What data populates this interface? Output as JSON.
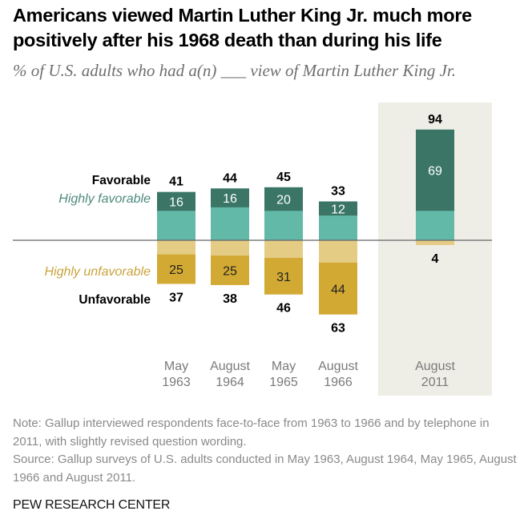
{
  "title": "Americans viewed Martin Luther King Jr. much more positively after his 1968 death than during his life",
  "subtitle": "% of U.S. adults who had a(n) ___ view of Martin Luther King Jr.",
  "notes": {
    "note": "Note: Gallup interviewed respondents face-to-face from 1963 to 1966 and by telephone in 2011, with slightly revised question wording.",
    "source": "Source: Gallup surveys of U.S. adults conducted in May 1963, August 1964, May 1965, August 1966 and August 2011."
  },
  "brand": "PEW RESEARCH CENTER",
  "colors": {
    "highly_favorable": "#3a7566",
    "favorable": "#63b9a8",
    "highly_unfavorable": "#d2a933",
    "unfavorable": "#e5cc85",
    "highlight_panel": "#efeee6",
    "baseline": "#666666",
    "category_label": "#7a7a7a",
    "highly_favorable_label": "#4d8a7c",
    "highly_unfavorable_label": "#c9a33c"
  },
  "chart_data": {
    "type": "bar",
    "subtype": "diverging-stacked",
    "title": "Americans viewed Martin Luther King Jr. much more positively after his 1968 death than during his life",
    "subtitle": "% of U.S. adults who had a(n) ___ view of Martin Luther King Jr.",
    "categories": [
      [
        "May",
        "1963"
      ],
      [
        "August",
        "1964"
      ],
      [
        "May",
        "1965"
      ],
      [
        "August",
        "1966"
      ],
      [
        "August",
        "2011"
      ]
    ],
    "highlighted_category_index": 4,
    "row_labels": {
      "favorable": "Favorable",
      "highly_favorable": "Highly favorable",
      "highly_unfavorable": "Highly unfavorable",
      "unfavorable": "Unfavorable"
    },
    "series": [
      {
        "name": "Favorable",
        "values": [
          41,
          44,
          45,
          33,
          94
        ]
      },
      {
        "name": "Highly favorable",
        "values": [
          16,
          16,
          20,
          12,
          69
        ]
      },
      {
        "name": "Unfavorable",
        "values": [
          37,
          38,
          46,
          63,
          4
        ]
      },
      {
        "name": "Highly unfavorable",
        "values": [
          25,
          25,
          31,
          44,
          null
        ]
      }
    ],
    "xlabel": "",
    "ylabel": "",
    "grid": false,
    "legend": "inline-left"
  }
}
